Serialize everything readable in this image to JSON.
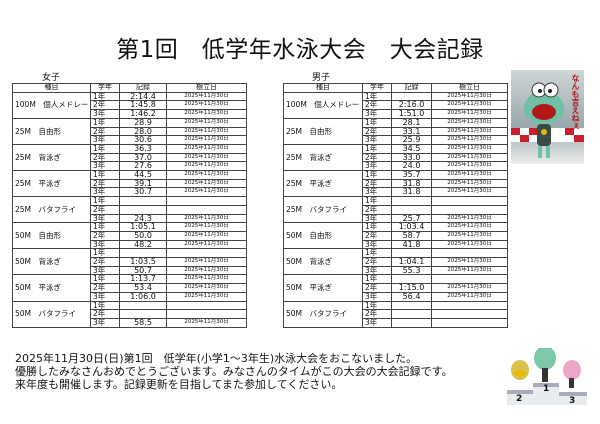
{
  "title": "第1回　低学年水泳大会　大会記録",
  "headers": [
    "種目",
    "学年",
    "記録",
    "樹立日"
  ],
  "grades": [
    "1年",
    "2年",
    "3年"
  ],
  "girls": {
    "label": "女子",
    "events": [
      {
        "name": "100M　個人メドレー",
        "records": [
          [
            "2:14.4",
            "2025年11月30日"
          ],
          [
            "1:45.8",
            "2025年11月30日"
          ],
          [
            "1:46.2",
            "2025年11月30日"
          ]
        ]
      },
      {
        "name": "25M　自由形",
        "records": [
          [
            "28.9",
            "2025年11月30日"
          ],
          [
            "28.0",
            "2025年11月30日"
          ],
          [
            "30.6",
            "2025年11月30日"
          ]
        ]
      },
      {
        "name": "25M　背泳ぎ",
        "records": [
          [
            "36.3",
            "2025年11月30日"
          ],
          [
            "37.0",
            "2025年11月30日"
          ],
          [
            "27.6",
            "2025年11月30日"
          ]
        ]
      },
      {
        "name": "25M　平泳ぎ",
        "records": [
          [
            "44.5",
            "2025年11月30日"
          ],
          [
            "39.1",
            "2025年11月30日"
          ],
          [
            "30.7",
            "2025年11月30日"
          ]
        ]
      },
      {
        "name": "25M　バタフライ",
        "records": [
          [
            "",
            ""
          ],
          [
            "",
            ""
          ],
          [
            "24.3",
            "2025年11月30日"
          ]
        ]
      },
      {
        "name": "50M　自由形",
        "records": [
          [
            "1:05.1",
            "2025年11月30日"
          ],
          [
            "50.0",
            "2025年11月30日"
          ],
          [
            "48.2",
            "2025年11月30日"
          ]
        ]
      },
      {
        "name": "50M　背泳ぎ",
        "records": [
          [
            "",
            ""
          ],
          [
            "1:03.5",
            "2025年11月30日"
          ],
          [
            "50.7",
            "2025年11月30日"
          ]
        ]
      },
      {
        "name": "50M　平泳ぎ",
        "records": [
          [
            "1:13.7",
            "2025年11月30日"
          ],
          [
            "53.4",
            "2025年11月30日"
          ],
          [
            "1:06.0",
            "2025年11月30日"
          ]
        ]
      },
      {
        "name": "50M　バタフライ",
        "records": [
          [
            "",
            ""
          ],
          [
            "",
            ""
          ],
          [
            "58.5",
            "2025年11月30日"
          ]
        ]
      }
    ]
  },
  "boys": {
    "label": "男子",
    "events": [
      {
        "name": "100M　個人メドレー",
        "records": [
          [
            "",
            "2025年11月30日"
          ],
          [
            "2:16.0",
            "2025年11月30日"
          ],
          [
            "1:51.0",
            "2025年11月30日"
          ]
        ]
      },
      {
        "name": "25M　自由形",
        "records": [
          [
            "28.1",
            "2025年11月30日"
          ],
          [
            "33.1",
            "2025年11月30日"
          ],
          [
            "25.9",
            "2025年11月30日"
          ]
        ]
      },
      {
        "name": "25M　背泳ぎ",
        "records": [
          [
            "34.5",
            "2025年11月30日"
          ],
          [
            "33.0",
            "2025年11月30日"
          ],
          [
            "24.0",
            "2025年11月30日"
          ]
        ]
      },
      {
        "name": "25M　平泳ぎ",
        "records": [
          [
            "35.7",
            "2025年11月30日"
          ],
          [
            "31.8",
            "2025年11月30日"
          ],
          [
            "31.8",
            "2025年11月30日"
          ]
        ]
      },
      {
        "name": "25M　バタフライ",
        "records": [
          [
            "",
            ""
          ],
          [
            "",
            ""
          ],
          [
            "25.7",
            "2025年11月30日"
          ]
        ]
      },
      {
        "name": "50M　自由形",
        "records": [
          [
            "1:03.4",
            "2025年11月30日"
          ],
          [
            "58.7",
            "2025年11月30日"
          ],
          [
            "41.8",
            "2025年11月30日"
          ]
        ]
      },
      {
        "name": "50M　背泳ぎ",
        "records": [
          [
            "",
            ""
          ],
          [
            "1:04.1",
            "2025年11月30日"
          ],
          [
            "55.3",
            "2025年11月30日"
          ]
        ]
      },
      {
        "name": "50M　平泳ぎ",
        "records": [
          [
            "",
            ""
          ],
          [
            "1:15.0",
            "2025年11月30日"
          ],
          [
            "56.4",
            "2025年11月30日"
          ]
        ]
      },
      {
        "name": "50M　バタフライ",
        "records": [
          [
            "",
            ""
          ],
          [
            "",
            ""
          ],
          [
            "",
            ""
          ]
        ]
      }
    ]
  },
  "footer": [
    "2025年11月30日(日)第1回　低学年(小学1～3年生)水泳大会をおこないました。",
    "優勝したみなさんおめでとうございます。みなさんのタイムがこの大会の大会記録です。",
    "来年度も開催します。記録更新を目指してまた参加してください。"
  ],
  "illustration": {
    "caption": "なんも言えねぇ",
    "podium_places": [
      "2",
      "1",
      "3"
    ]
  }
}
